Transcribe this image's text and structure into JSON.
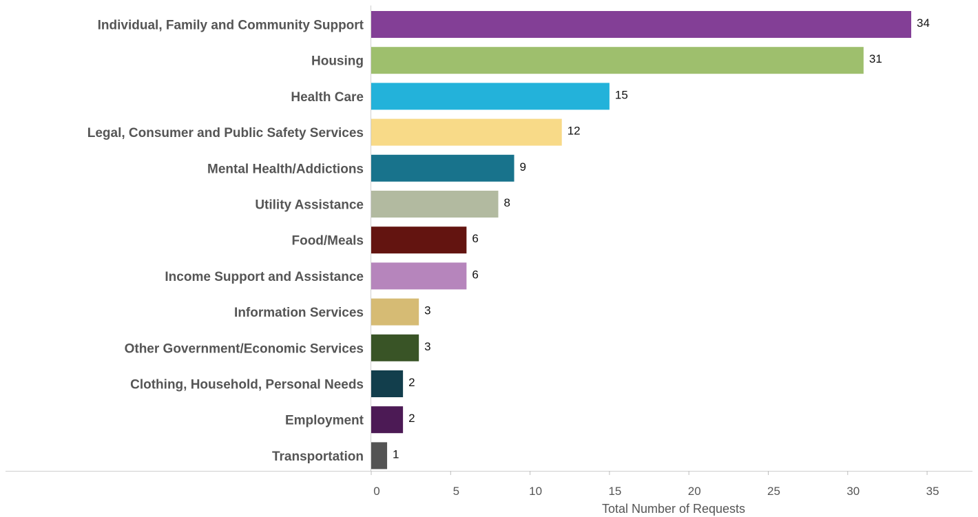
{
  "chart_data": {
    "type": "bar",
    "orientation": "horizontal",
    "categories": [
      "Individual, Family and Community Support",
      "Housing",
      "Health Care",
      "Legal, Consumer and Public Safety Services",
      "Mental Health/Addictions",
      "Utility Assistance",
      "Food/Meals",
      "Income Support and Assistance",
      "Information Services",
      "Other Government/Economic Services",
      "Clothing, Household, Personal Needs",
      "Employment",
      "Transportation"
    ],
    "values": [
      34,
      31,
      15,
      12,
      9,
      8,
      6,
      6,
      3,
      3,
      2,
      2,
      1
    ],
    "colors": [
      "#833F96",
      "#9EBF6D",
      "#23B2DA",
      "#F8DA88",
      "#18738C",
      "#B2BAA0",
      "#631410",
      "#B685BC",
      "#D6BB74",
      "#395426",
      "#123E4C",
      "#4C1A55",
      "#545454"
    ],
    "xlabel": "Total Number of Requests",
    "ylabel": "",
    "xlim": [
      0,
      35
    ],
    "xticks": [
      "0",
      "5",
      "10",
      "15",
      "20",
      "25",
      "30",
      "35"
    ],
    "grid": false,
    "legend": "none"
  }
}
